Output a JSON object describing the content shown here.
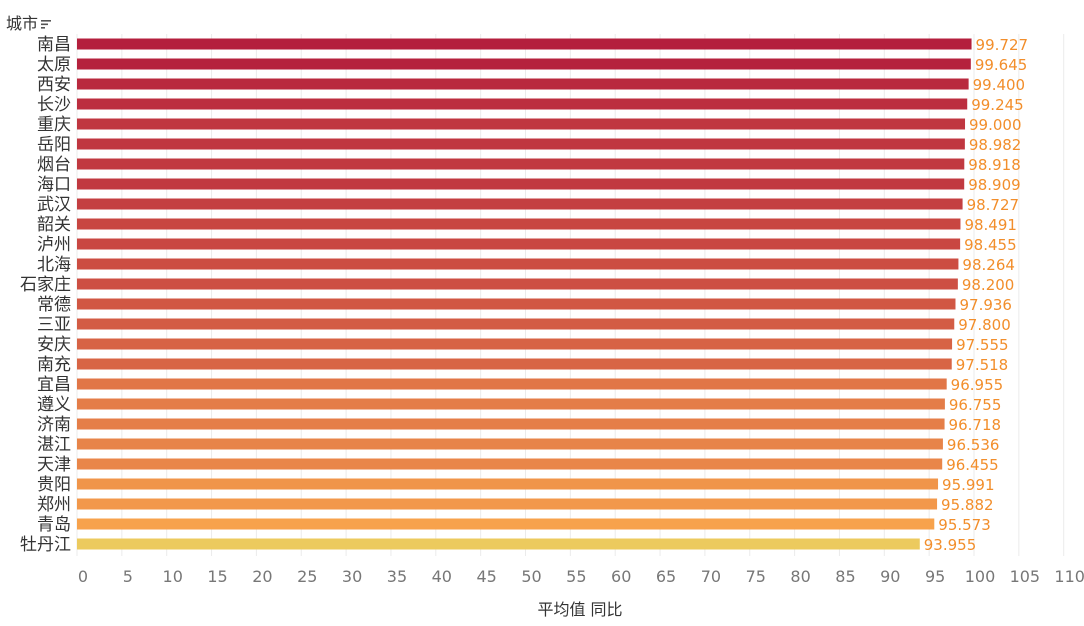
{
  "chart_data": {
    "type": "bar",
    "orientation": "horizontal",
    "row_header": "城市",
    "xlabel": "平均值 同比",
    "xlim": [
      0,
      110
    ],
    "xticks": [
      "0",
      "5",
      "10",
      "15",
      "20",
      "25",
      "30",
      "35",
      "40",
      "45",
      "50",
      "55",
      "60",
      "65",
      "70",
      "75",
      "80",
      "85",
      "90",
      "95",
      "100",
      "105",
      "110"
    ],
    "grid": true,
    "categories": [
      "南昌",
      "太原",
      "西安",
      "长沙",
      "重庆",
      "岳阳",
      "烟台",
      "海口",
      "武汉",
      "韶关",
      "泸州",
      "北海",
      "石家庄",
      "常德",
      "三亚",
      "安庆",
      "南充",
      "宜昌",
      "遵义",
      "济南",
      "湛江",
      "天津",
      "贵阳",
      "郑州",
      "青岛",
      "牡丹江"
    ],
    "values": [
      99.727,
      99.645,
      99.4,
      99.245,
      99.0,
      98.982,
      98.918,
      98.909,
      98.727,
      98.491,
      98.455,
      98.264,
      98.2,
      97.936,
      97.8,
      97.555,
      97.518,
      96.955,
      96.755,
      96.718,
      96.536,
      96.455,
      95.991,
      95.882,
      95.573,
      93.955
    ],
    "value_labels": [
      "99.727",
      "99.645",
      "99.400",
      "99.245",
      "99.000",
      "98.982",
      "98.918",
      "98.909",
      "98.727",
      "98.491",
      "98.455",
      "98.264",
      "98.200",
      "97.936",
      "97.800",
      "97.555",
      "97.518",
      "96.955",
      "96.755",
      "96.718",
      "96.536",
      "96.455",
      "95.991",
      "95.882",
      "95.573",
      "93.955"
    ],
    "colors": {
      "high": "#b41f3d",
      "low": "#f7a24c",
      "lowest": "#ecca5e",
      "label": "#f28e2b",
      "grid": "#ebebeb",
      "tick_text": "#777777",
      "category_text": "#333333"
    }
  }
}
